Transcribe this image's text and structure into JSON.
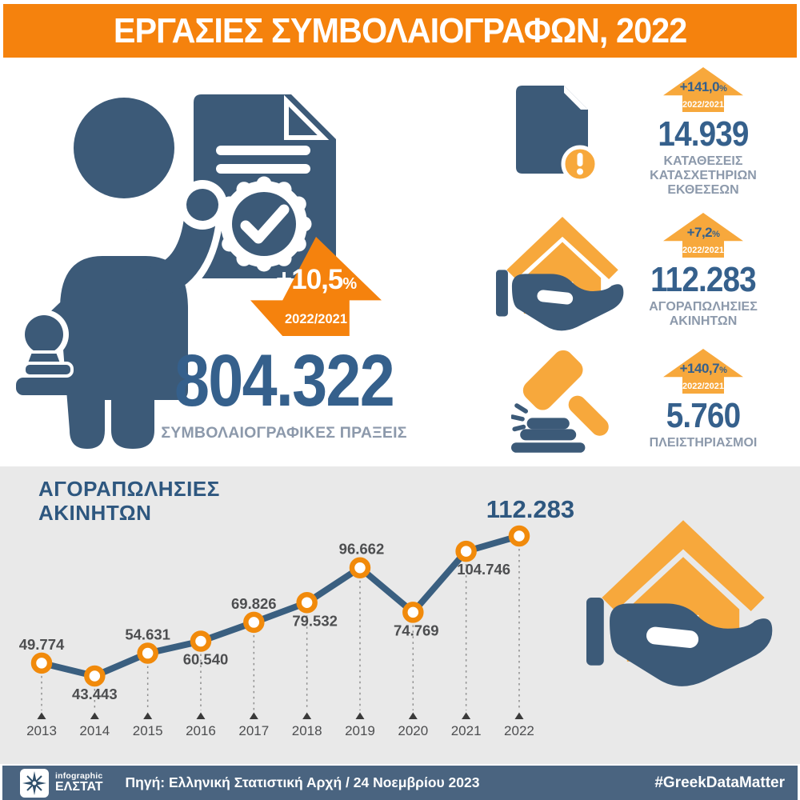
{
  "header": {
    "title": "ΕΡΓΑΣΙΕΣ ΣΥΜΒΟΛΑΙΟΓΡΑΦΩΝ, 2022"
  },
  "main_stat": {
    "delta": "+10,5",
    "delta_pct": "%",
    "period": "2022/2021",
    "value": "804.322",
    "label": "ΣΥΜΒΟΛΑΙΟΓΡΑΦΙΚΕΣ ΠΡΑΞΕΙΣ"
  },
  "side_stats": [
    {
      "icon": "document-exclamation-icon",
      "delta": "+141,0",
      "delta_pct": "%",
      "period": "2022/2021",
      "value": "14.939",
      "label_lines": [
        "ΚΑΤΑΘΕΣΕΙΣ",
        "ΚΑΤΑΣΧΕΤΗΡΙΩΝ",
        "ΕΚΘΕΣΕΩΝ"
      ]
    },
    {
      "icon": "house-in-hand-icon",
      "delta": "+7,2",
      "delta_pct": "%",
      "period": "2022/2021",
      "value": "112.283",
      "label_lines": [
        "ΑΓΟΡΑΠΩΛΗΣΙΕΣ",
        "ΑΚΙΝΗΤΩΝ"
      ]
    },
    {
      "icon": "gavel-icon",
      "delta": "+140,7",
      "delta_pct": "%",
      "period": "2022/2021",
      "value": "5.760",
      "label_lines": [
        "ΠΛΕΙΣΤΗΡΙΑΣΜΟΙ"
      ]
    }
  ],
  "chart_section": {
    "title_lines": [
      "ΑΓΟΡΑΠΩΛΗΣΙΕΣ",
      "ΑΚΙΝΗΤΩΝ"
    ]
  },
  "chart_data": {
    "type": "line",
    "title": "ΑΓΟΡΑΠΩΛΗΣΙΕΣ ΑΚΙΝΗΤΩΝ",
    "x": [
      "2013",
      "2014",
      "2015",
      "2016",
      "2017",
      "2018",
      "2019",
      "2020",
      "2021",
      "2022"
    ],
    "values": [
      49774,
      43443,
      54631,
      60540,
      69826,
      79532,
      96662,
      74769,
      104746,
      112283
    ],
    "point_labels": [
      "49.774",
      "43.443",
      "54.631",
      "60.540",
      "69.826",
      "79.532",
      "96.662",
      "74.769",
      "104.746",
      "112.283"
    ],
    "label_sides": [
      "above",
      "below",
      "above",
      "below",
      "above",
      "below",
      "above",
      "below",
      "below",
      "above"
    ],
    "label_dx": [
      0,
      0,
      0,
      6,
      0,
      10,
      2,
      4,
      22,
      14
    ],
    "highlight_last": true,
    "ylim": [
      40000,
      120000
    ],
    "grid": false,
    "legend": false,
    "line_color": "#3A5F80",
    "marker_color": "#F18A0B",
    "value_label_color": "#4D4E50",
    "highlight_label_color": "#2E577F"
  },
  "footer": {
    "logo_small": "infographic",
    "logo_main": "ΕΛΣΤΑΤ",
    "source": "Πηγή: Ελληνική Στατιστική Αρχή / 24 Νοεμβρίου 2023",
    "hashtag": "#GreekDataMatter"
  },
  "colors": {
    "orange": "#F5820D",
    "amber": "#F7A83C",
    "blue_icon": "#3C5A78",
    "blue_number": "#35608C",
    "blue_deep": "#2E577F",
    "label_gray_blue": "#8C99AB",
    "text_gray": "#4D4E50",
    "section_bg": "#E9E9E9",
    "footer_bg": "#4A6480"
  }
}
